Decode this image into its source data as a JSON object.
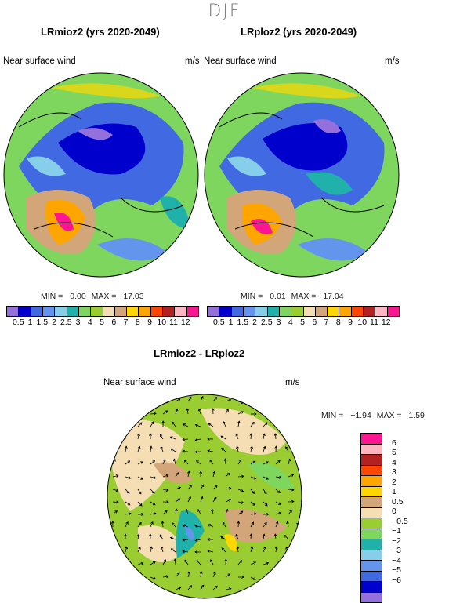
{
  "season": "DJF",
  "panel1": {
    "title": "LRmioz2 (yrs 2020-2049)",
    "variable": "Near surface wind",
    "units": "m/s",
    "min_label": "MIN =",
    "min_value": "0.00",
    "max_label": "MAX =",
    "max_value": "17.03"
  },
  "panel2": {
    "title": "LRploz2 (yrs 2020-2049)",
    "variable": "Near surface wind",
    "units": "m/s",
    "min_label": "MIN =",
    "min_value": "0.01",
    "max_label": "MAX =",
    "max_value": "17.04"
  },
  "panel3": {
    "title": "LRmioz2 - LRploz2",
    "variable": "Near surface wind",
    "units": "m/s",
    "min_label": "MIN =",
    "min_value": "−1.94",
    "max_label": "MAX =",
    "max_value": "1.59"
  },
  "colorbar_abs": {
    "colors": [
      "#9370db",
      "#0000cd",
      "#4169e1",
      "#6495ed",
      "#87ceeb",
      "#20b2aa",
      "#7fd65f",
      "#9acd32",
      "#f5deb3",
      "#d2a679",
      "#ffd700",
      "#ffa500",
      "#ff4500",
      "#b22222",
      "#ffb6c1",
      "#ff1493"
    ],
    "ticks": [
      "0.5",
      "1",
      "1.5",
      "2",
      "2.5",
      "3",
      "4",
      "5",
      "6",
      "7",
      "8",
      "9",
      "10",
      "11",
      "12"
    ]
  },
  "colorbar_diff": {
    "colors": [
      "#ff1493",
      "#ffb6c1",
      "#b22222",
      "#ff4500",
      "#ffa500",
      "#ffd700",
      "#d2a679",
      "#f5deb3",
      "#9acd32",
      "#7fd65f",
      "#20b2aa",
      "#87ceeb",
      "#6495ed",
      "#4169e1",
      "#0000cd",
      "#9370db"
    ],
    "ticks": [
      "6",
      "5",
      "4",
      "3",
      "2",
      "1",
      "0.5",
      "0",
      "−0.5",
      "−1",
      "−2",
      "−3",
      "−4",
      "−5",
      "−6"
    ]
  }
}
